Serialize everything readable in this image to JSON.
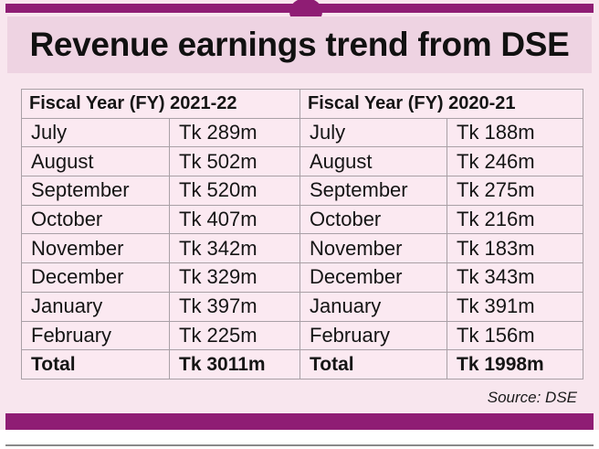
{
  "title": "Revenue earnings trend from DSE",
  "table": {
    "headers": [
      "Fiscal Year (FY) 2021-22",
      "Fiscal Year (FY) 2020-21"
    ],
    "rows": [
      [
        "July",
        "Tk 289m",
        "July",
        "Tk 188m"
      ],
      [
        "August",
        "Tk 502m",
        "August",
        "Tk 246m"
      ],
      [
        "September",
        "Tk 520m",
        "September",
        "Tk 275m"
      ],
      [
        "October",
        "Tk 407m",
        "October",
        "Tk 216m"
      ],
      [
        "November",
        "Tk 342m",
        "November",
        "Tk 183m"
      ],
      [
        "December",
        "Tk 329m",
        "December",
        "Tk 343m"
      ],
      [
        "January",
        "Tk 397m",
        "January",
        "Tk 391m"
      ],
      [
        "February",
        "Tk 225m",
        "February",
        "Tk 156m"
      ]
    ],
    "total": [
      "Total",
      "Tk 3011m",
      "Total",
      "Tk 1998m"
    ]
  },
  "source": "Source: DSE",
  "colors": {
    "accent": "#8f1d74",
    "background": "#f8e6ee",
    "title_band": "#eed3e2"
  }
}
